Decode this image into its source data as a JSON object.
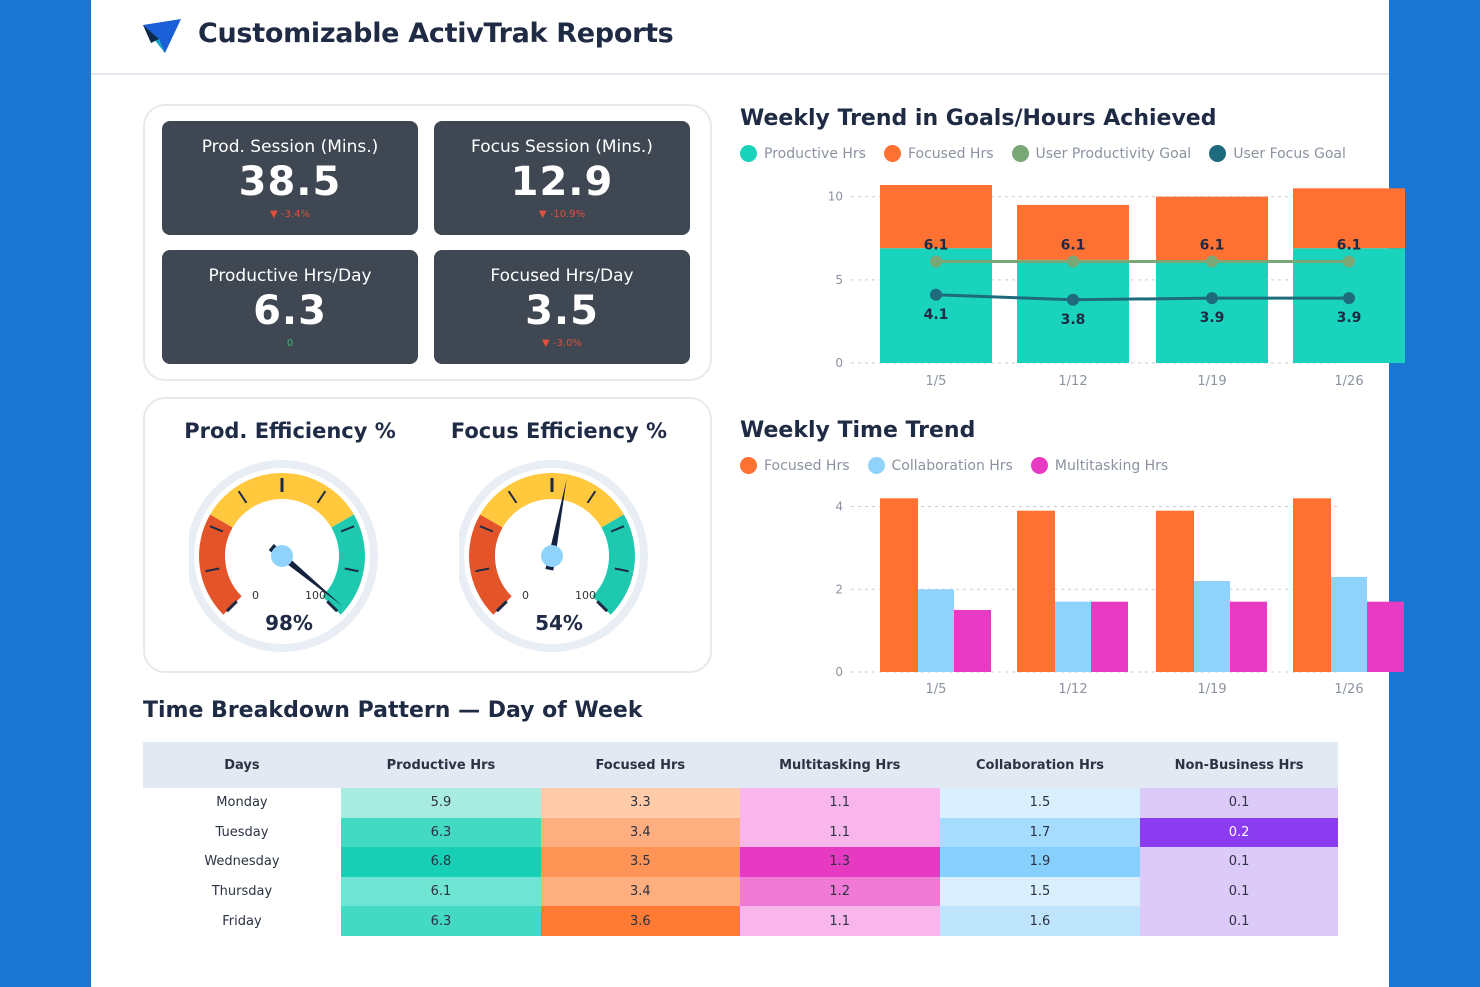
{
  "header": {
    "title": "Customizable ActivTrak Reports"
  },
  "kpis": [
    {
      "label": "Prod. Session (Mins.)",
      "value": "38.5",
      "change": "▼ -3.4%",
      "trend": "down"
    },
    {
      "label": "Focus Session (Mins.)",
      "value": "12.9",
      "change": "▼ -10.9%",
      "trend": "down"
    },
    {
      "label": "Productive Hrs/Day",
      "value": "6.3",
      "change": "0",
      "trend": "flat"
    },
    {
      "label": "Focused Hrs/Day",
      "value": "3.5",
      "change": "▼ -3.0%",
      "trend": "down"
    }
  ],
  "gauges": [
    {
      "title": "Prod. Efficiency %",
      "value": 98,
      "display": "98%",
      "min": "0",
      "max": "100"
    },
    {
      "title": "Focus Efficiency %",
      "value": 54,
      "display": "54%",
      "min": "0",
      "max": "100"
    }
  ],
  "colors": {
    "productive": "#1ad3bc",
    "focused": "#ff7033",
    "user_prod_goal": "#79a876",
    "user_focus_goal": "#1e6b7d",
    "collaboration": "#8fd3fd",
    "multitasking": "#e83bc4",
    "gauge_red": "#e3542a",
    "gauge_yellow": "#ffc83d",
    "gauge_teal": "#1ec9b0"
  },
  "chart_data": [
    {
      "type": "bar",
      "title": "Weekly Trend in Goals/Hours Achieved",
      "categories": [
        "1/5",
        "1/12",
        "1/19",
        "1/26"
      ],
      "legend": [
        "Productive Hrs",
        "Focused Hrs",
        "User Productivity Goal",
        "User Focus Goal"
      ],
      "series": [
        {
          "name": "Productive Hrs",
          "kind": "stack",
          "values": [
            6.9,
            6.2,
            6.1,
            6.9
          ]
        },
        {
          "name": "Focused Hrs",
          "kind": "stack",
          "values": [
            3.8,
            3.3,
            3.9,
            3.6
          ]
        },
        {
          "name": "User Productivity Goal",
          "kind": "line",
          "values": [
            6.1,
            6.1,
            6.1,
            6.1
          ],
          "labels": [
            "6.1",
            "6.1",
            "6.1",
            "6.1"
          ]
        },
        {
          "name": "User Focus Goal",
          "kind": "line",
          "values": [
            4.1,
            3.8,
            3.9,
            3.9
          ],
          "labels": [
            "4.1",
            "3.8",
            "3.9",
            "3.9"
          ]
        }
      ],
      "yticks": [
        "0",
        "5",
        "10"
      ],
      "ylim": [
        0,
        11
      ]
    },
    {
      "type": "bar",
      "title": "Weekly Time Trend",
      "categories": [
        "1/5",
        "1/12",
        "1/19",
        "1/26"
      ],
      "legend": [
        "Focused Hrs",
        "Collaboration Hrs",
        "Multitasking Hrs"
      ],
      "series": [
        {
          "name": "Focused Hrs",
          "values": [
            4.2,
            3.9,
            3.9,
            4.2
          ]
        },
        {
          "name": "Collaboration Hrs",
          "values": [
            2.0,
            1.7,
            2.2,
            2.3
          ]
        },
        {
          "name": "Multitasking Hrs",
          "values": [
            1.5,
            1.7,
            1.7,
            1.7
          ]
        }
      ],
      "yticks": [
        "0",
        "2",
        "4"
      ],
      "ylim": [
        0,
        4.4
      ]
    }
  ],
  "table": {
    "title": "Time Breakdown Pattern — Day of Week",
    "columns": [
      "Days",
      "Productive Hrs",
      "Focused Hrs",
      "Multitasking Hrs",
      "Collaboration Hrs",
      "Non-Business Hrs"
    ],
    "rows": [
      {
        "day": "Monday",
        "cells": [
          "5.9",
          "3.3",
          "1.1",
          "1.5",
          "0.1"
        ],
        "shades": [
          "#a8ece0",
          "#ffcba8",
          "#f9b6ec",
          "#d9effd",
          "#dccaf8"
        ]
      },
      {
        "day": "Tuesday",
        "cells": [
          "6.3",
          "3.4",
          "1.1",
          "1.7",
          "0.2"
        ],
        "shades": [
          "#43d9c3",
          "#ffae80",
          "#f9b6ec",
          "#a6dcfd",
          "#8b3cf0"
        ]
      },
      {
        "day": "Wednesday",
        "cells": [
          "6.8",
          "3.5",
          "1.3",
          "1.9",
          "0.1"
        ],
        "shades": [
          "#17cfb5",
          "#ff9457",
          "#e63ac3",
          "#87cffc",
          "#dccaf8"
        ]
      },
      {
        "day": "Thursday",
        "cells": [
          "6.1",
          "3.4",
          "1.2",
          "1.5",
          "0.1"
        ],
        "shades": [
          "#6fe4d2",
          "#ffae80",
          "#f07ad6",
          "#d9effd",
          "#dccaf8"
        ]
      },
      {
        "day": "Friday",
        "cells": [
          "6.3",
          "3.6",
          "1.1",
          "1.6",
          "0.1"
        ],
        "shades": [
          "#43d9c3",
          "#ff7a33",
          "#f9b6ec",
          "#bfe5fd",
          "#dccaf8"
        ]
      }
    ]
  }
}
